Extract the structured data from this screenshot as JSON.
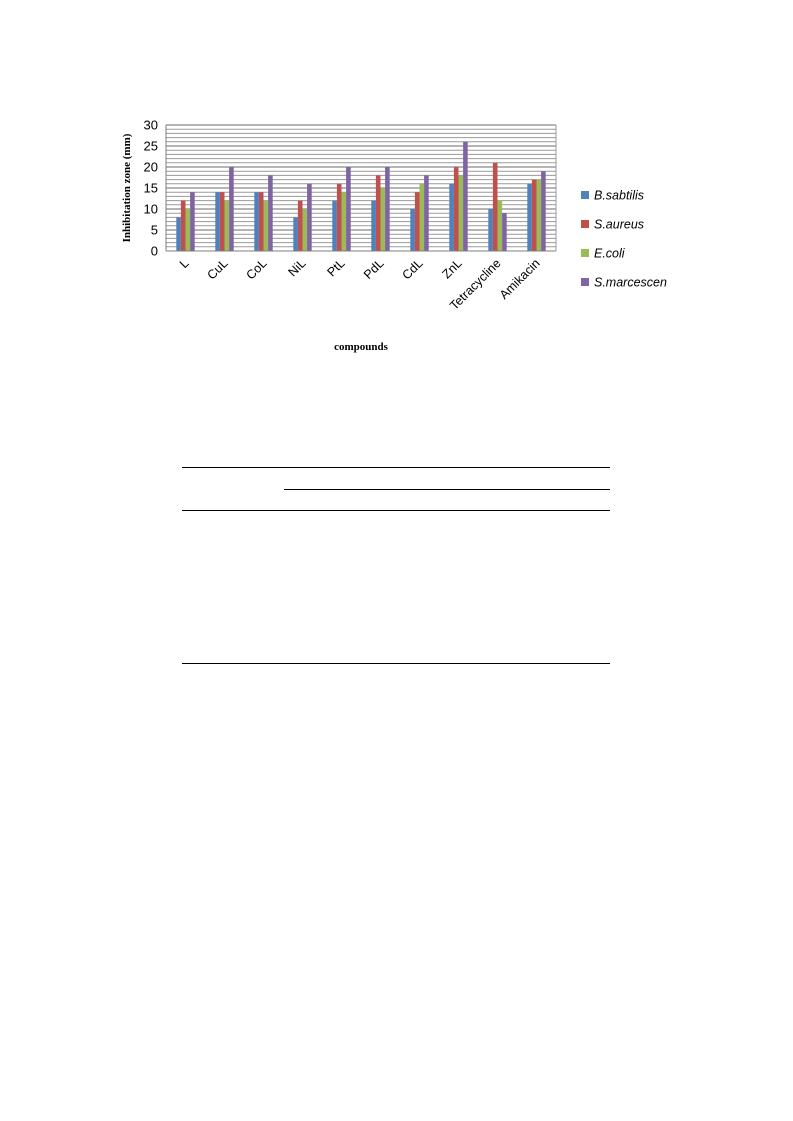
{
  "chart_data": {
    "type": "bar",
    "ylabel": "Inhibitation zone (mm)",
    "xlabel": "compounds",
    "ylim": [
      0,
      30
    ],
    "yticks": [
      0,
      5,
      10,
      15,
      20,
      25,
      30
    ],
    "grid": true,
    "legend_position": "right",
    "categories": [
      "L",
      "CuL",
      "CoL",
      "NiL",
      "PtL",
      "PdL",
      "CdL",
      "ZnL",
      "Tetracycline",
      "Amikacin"
    ],
    "series": [
      {
        "name": "B.sabtilis",
        "color": "#4f81bd",
        "values": [
          8,
          14,
          14,
          8,
          12,
          12,
          10,
          16,
          10,
          16
        ]
      },
      {
        "name": "S.aureus",
        "color": "#c0504d",
        "values": [
          12,
          14,
          14,
          12,
          16,
          18,
          14,
          20,
          21,
          17
        ]
      },
      {
        "name": "E.coli",
        "color": "#9bbb59",
        "values": [
          10,
          12,
          12,
          10,
          14,
          15,
          16,
          18,
          12,
          17
        ]
      },
      {
        "name": "S.marcescen",
        "color": "#8064a2",
        "values": [
          14,
          20,
          18,
          16,
          20,
          20,
          18,
          26,
          9,
          19
        ]
      }
    ]
  }
}
